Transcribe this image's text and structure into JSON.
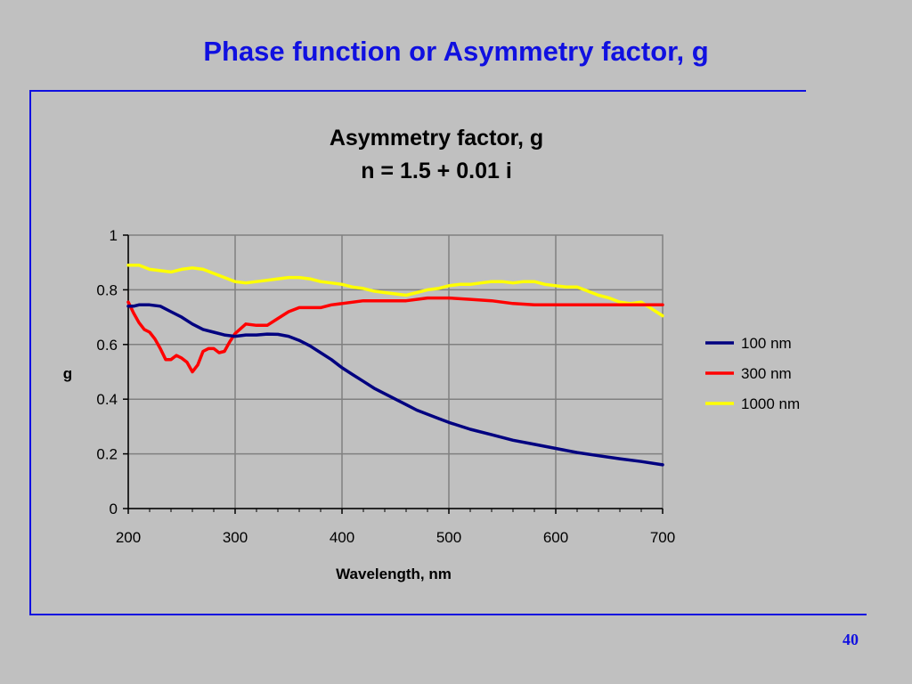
{
  "slide": {
    "title": "Phase function or Asymmetry factor, g",
    "page_number": "40"
  },
  "colors": {
    "accent": "#1010e0",
    "background": "#c0c0c0",
    "plot_background": "#c0c0c0",
    "gridline": "#808080"
  },
  "chart_data": {
    "type": "line",
    "title": "Asymmetry factor, g",
    "subtitle": "n = 1.5 + 0.01 i",
    "xlabel": "Wavelength, nm",
    "ylabel": "g",
    "xlim": [
      200,
      700
    ],
    "ylim": [
      0,
      1
    ],
    "x_ticks": [
      200,
      300,
      400,
      500,
      600,
      700
    ],
    "x_tick_labels": [
      "200",
      "300",
      "400",
      "500",
      "600",
      "700"
    ],
    "y_ticks": [
      0,
      0.2,
      0.4,
      0.6,
      0.8,
      1
    ],
    "y_tick_labels": [
      "0",
      "0.2",
      "0.4",
      "0.6",
      "0.8",
      "1"
    ],
    "grid": true,
    "legend_position": "right",
    "series": [
      {
        "name": "100 nm",
        "color": "#000080",
        "x": [
          200,
          205,
          210,
          220,
          230,
          240,
          250,
          260,
          270,
          280,
          290,
          300,
          310,
          320,
          330,
          340,
          350,
          360,
          370,
          380,
          390,
          400,
          410,
          420,
          430,
          440,
          450,
          460,
          470,
          480,
          490,
          500,
          520,
          540,
          560,
          580,
          600,
          620,
          640,
          660,
          680,
          700
        ],
        "y": [
          0.74,
          0.74,
          0.745,
          0.745,
          0.74,
          0.72,
          0.7,
          0.675,
          0.655,
          0.645,
          0.635,
          0.63,
          0.635,
          0.635,
          0.638,
          0.637,
          0.63,
          0.615,
          0.595,
          0.57,
          0.545,
          0.515,
          0.49,
          0.465,
          0.44,
          0.42,
          0.4,
          0.38,
          0.36,
          0.345,
          0.33,
          0.315,
          0.29,
          0.27,
          0.25,
          0.235,
          0.22,
          0.205,
          0.193,
          0.182,
          0.172,
          0.16
        ]
      },
      {
        "name": "300 nm",
        "color": "#ff0000",
        "x": [
          200,
          205,
          210,
          215,
          220,
          225,
          230,
          235,
          240,
          245,
          250,
          255,
          260,
          265,
          270,
          275,
          280,
          285,
          290,
          295,
          300,
          310,
          320,
          330,
          340,
          350,
          360,
          370,
          380,
          390,
          400,
          420,
          440,
          460,
          480,
          500,
          520,
          540,
          560,
          580,
          600,
          620,
          640,
          660,
          680,
          700
        ],
        "y": [
          0.755,
          0.715,
          0.68,
          0.655,
          0.645,
          0.62,
          0.585,
          0.545,
          0.545,
          0.56,
          0.55,
          0.535,
          0.5,
          0.525,
          0.575,
          0.585,
          0.585,
          0.57,
          0.575,
          0.61,
          0.64,
          0.675,
          0.67,
          0.67,
          0.695,
          0.72,
          0.735,
          0.735,
          0.735,
          0.745,
          0.75,
          0.76,
          0.76,
          0.76,
          0.77,
          0.77,
          0.765,
          0.76,
          0.75,
          0.745,
          0.745,
          0.745,
          0.745,
          0.745,
          0.745,
          0.745
        ]
      },
      {
        "name": "1000 nm",
        "color": "#ffff00",
        "x": [
          200,
          210,
          220,
          230,
          240,
          250,
          260,
          270,
          280,
          290,
          300,
          310,
          320,
          330,
          340,
          350,
          360,
          370,
          380,
          390,
          400,
          410,
          420,
          430,
          440,
          450,
          460,
          470,
          480,
          490,
          500,
          510,
          520,
          530,
          540,
          550,
          560,
          570,
          580,
          590,
          600,
          610,
          620,
          630,
          640,
          650,
          660,
          670,
          680,
          690,
          700
        ],
        "y": [
          0.89,
          0.89,
          0.875,
          0.87,
          0.865,
          0.875,
          0.88,
          0.875,
          0.86,
          0.845,
          0.83,
          0.825,
          0.83,
          0.835,
          0.84,
          0.845,
          0.845,
          0.84,
          0.83,
          0.825,
          0.82,
          0.81,
          0.805,
          0.795,
          0.79,
          0.785,
          0.78,
          0.79,
          0.8,
          0.805,
          0.815,
          0.82,
          0.82,
          0.825,
          0.83,
          0.83,
          0.825,
          0.83,
          0.83,
          0.82,
          0.815,
          0.81,
          0.81,
          0.795,
          0.78,
          0.77,
          0.755,
          0.75,
          0.755,
          0.73,
          0.705
        ]
      }
    ]
  }
}
